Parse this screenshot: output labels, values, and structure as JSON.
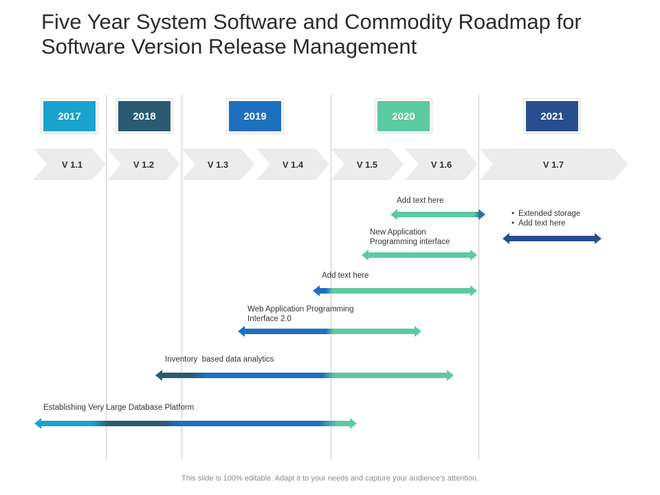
{
  "title": "Five Year System Software and Commodity Roadmap for Software Version Release Management",
  "years": [
    {
      "label": "2017",
      "color": "#1aa3cf"
    },
    {
      "label": "2018",
      "color": "#2b5a73"
    },
    {
      "label": "2019",
      "color": "#1e6fbf"
    },
    {
      "label": "2020",
      "color": "#5ccaa0"
    },
    {
      "label": "2021",
      "color": "#2a4d8f"
    }
  ],
  "versions": [
    "V 1.1",
    "V 1.2",
    "V 1.3",
    "V 1.4",
    "V 1.5",
    "V 1.6",
    "V 1.7"
  ],
  "bars": [
    {
      "label": "Add text here"
    },
    {
      "label": "New Application Programming interface"
    },
    {
      "label": "Add text here"
    },
    {
      "label": "Web Application Programming Interface 2.0"
    },
    {
      "label": "Inventory  based data analytics"
    },
    {
      "label": "Establishing Very Large Database Platform"
    }
  ],
  "bullets": [
    "Extended storage",
    "Add text here"
  ],
  "footer": "This slide is 100% editable. Adapt it to your needs and capture your audience's attention."
}
